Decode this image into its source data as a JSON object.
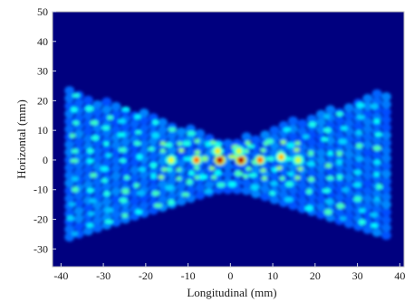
{
  "chart_data": {
    "type": "heatmap",
    "title": "",
    "xlabel": "Longitudinal  (mm)",
    "ylabel": "Horizontal  (mm)",
    "xlim": [
      -42,
      41
    ],
    "ylim": [
      -36,
      50
    ],
    "xticks": [
      -40,
      -30,
      -20,
      -10,
      0,
      10,
      20,
      30,
      40
    ],
    "yticks": [
      -30,
      -20,
      -10,
      0,
      10,
      20,
      30,
      40,
      50
    ],
    "colormap": "jet",
    "background_color": "#00007f",
    "grid": false,
    "colorbar": false,
    "peaks": [
      {
        "x": -2.5,
        "y": 0,
        "intensity": 1.0
      },
      {
        "x": 2.5,
        "y": 0,
        "intensity": 1.0
      },
      {
        "x": -8,
        "y": 0,
        "intensity": 0.8
      },
      {
        "x": 7,
        "y": 0,
        "intensity": 0.8
      },
      {
        "x": 12,
        "y": 1,
        "intensity": 0.72
      },
      {
        "x": -3,
        "y": 3,
        "intensity": 0.65
      },
      {
        "x": 2,
        "y": 3,
        "intensity": 0.6
      },
      {
        "x": -14,
        "y": 0,
        "intensity": 0.62
      },
      {
        "x": 16,
        "y": 0,
        "intensity": 0.6
      }
    ],
    "envelope": {
      "shape": "bowtie",
      "waist_half_width_y": 9,
      "end_half_width_y": 25,
      "x_range": [
        -38,
        37
      ],
      "center_y": -1
    }
  }
}
